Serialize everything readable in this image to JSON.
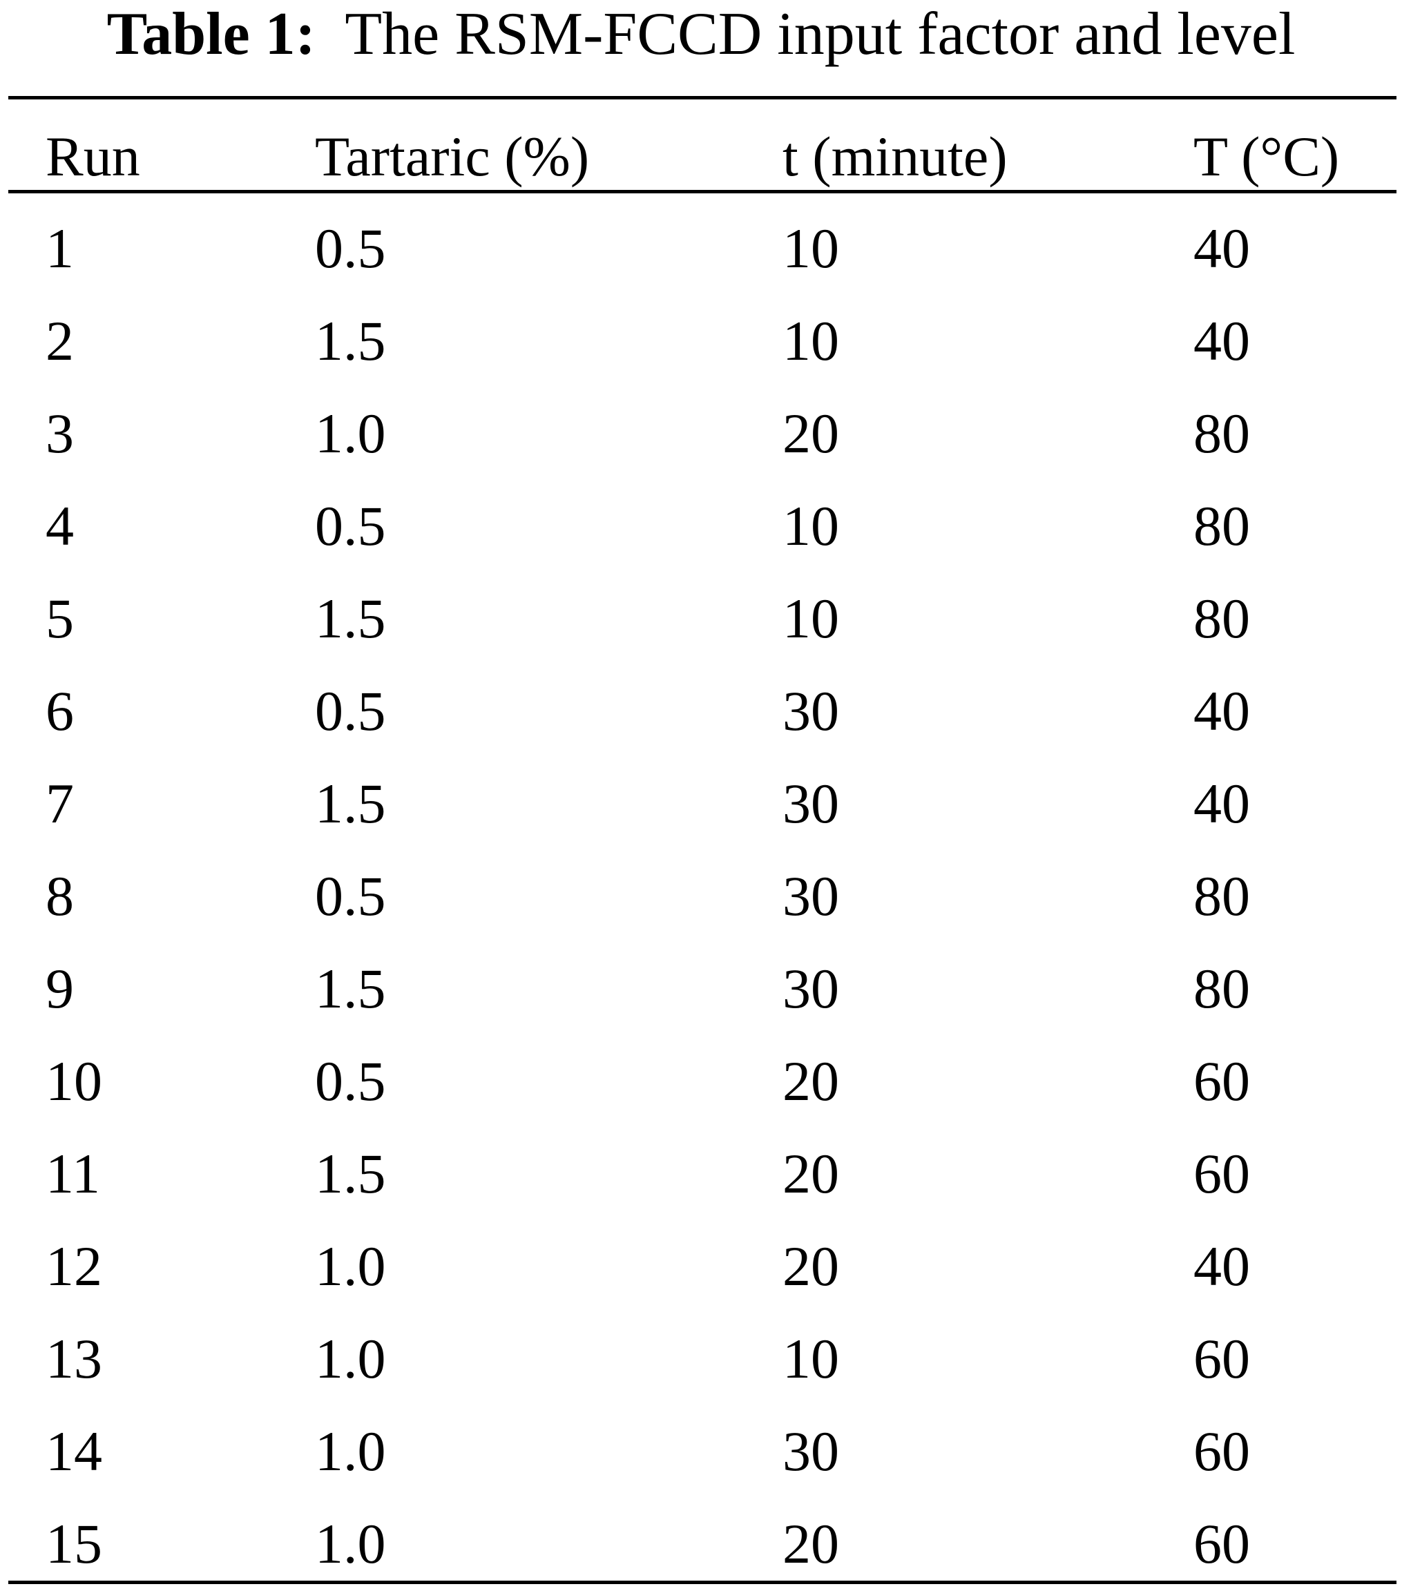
{
  "caption": {
    "label": "Table 1:",
    "text": "The RSM-FCCD input factor and level"
  },
  "table": {
    "headers": [
      "Run",
      "Tartaric (%)",
      "t (minute)",
      "T (°C)"
    ],
    "rows": [
      [
        "1",
        "0.5",
        "10",
        "40"
      ],
      [
        "2",
        "1.5",
        "10",
        "40"
      ],
      [
        "3",
        "1.0",
        "20",
        "80"
      ],
      [
        "4",
        "0.5",
        "10",
        "80"
      ],
      [
        "5",
        "1.5",
        "10",
        "80"
      ],
      [
        "6",
        "0.5",
        "30",
        "40"
      ],
      [
        "7",
        "1.5",
        "30",
        "40"
      ],
      [
        "8",
        "0.5",
        "30",
        "80"
      ],
      [
        "9",
        "1.5",
        "30",
        "80"
      ],
      [
        "10",
        "0.5",
        "20",
        "60"
      ],
      [
        "11",
        "1.5",
        "20",
        "60"
      ],
      [
        "12",
        "1.0",
        "20",
        "40"
      ],
      [
        "13",
        "1.0",
        "10",
        "60"
      ],
      [
        "14",
        "1.0",
        "30",
        "60"
      ],
      [
        "15",
        "1.0",
        "20",
        "60"
      ]
    ]
  }
}
